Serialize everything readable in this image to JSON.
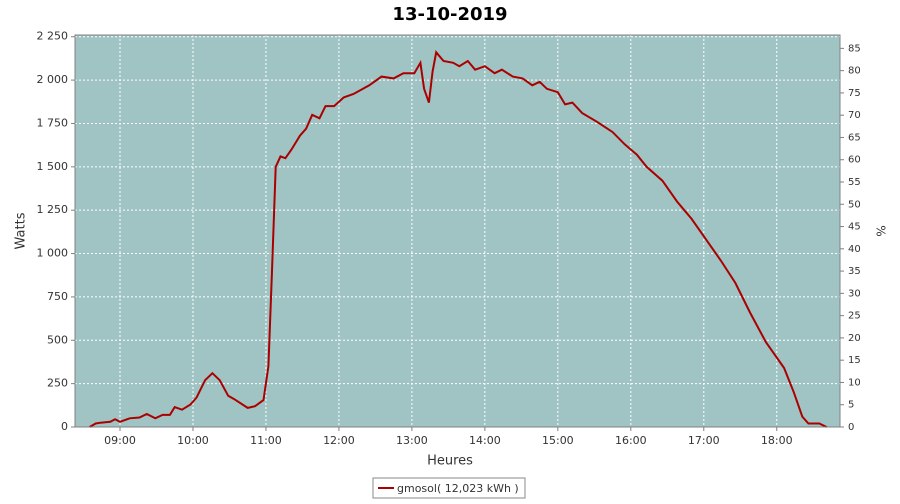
{
  "chart_data": {
    "type": "line",
    "title": "13-10-2019",
    "xlabel": "Heures",
    "ylabel": "Watts",
    "y2label": "%",
    "x": [
      "08:35",
      "08:40",
      "08:44",
      "08:52",
      "08:56",
      "09:00",
      "09:08",
      "09:16",
      "09:22",
      "09:29",
      "09:35",
      "09:41",
      "09:45",
      "09:51",
      "09:58",
      "10:03",
      "10:10",
      "10:16",
      "10:22",
      "10:29",
      "10:34",
      "10:45",
      "10:51",
      "10:58",
      "11:02",
      "11:05",
      "11:08",
      "11:12",
      "11:16",
      "11:21",
      "11:28",
      "11:33",
      "11:38",
      "11:44",
      "11:49",
      "11:56",
      "12:04",
      "12:12",
      "12:25",
      "12:35",
      "12:45",
      "12:53",
      "13:02",
      "13:07",
      "13:10",
      "13:14",
      "13:17",
      "13:20",
      "13:26",
      "13:34",
      "13:39",
      "13:46",
      "13:52",
      "14:00",
      "14:08",
      "14:14",
      "14:23",
      "14:31",
      "14:39",
      "14:45",
      "14:51",
      "15:00",
      "15:06",
      "15:12",
      "15:20",
      "15:32",
      "15:45",
      "15:55",
      "16:05",
      "16:13",
      "16:26",
      "16:38",
      "16:50",
      "17:02",
      "17:14",
      "17:26",
      "17:38",
      "17:51",
      "18:06",
      "18:14",
      "18:21",
      "18:26",
      "18:35",
      "18:41"
    ],
    "series": [
      {
        "name": "gmosol( 12,023 kWh )",
        "color": "#aa0000",
        "values": [
          0,
          20,
          25,
          30,
          45,
          30,
          50,
          55,
          75,
          50,
          70,
          70,
          115,
          100,
          130,
          170,
          270,
          310,
          270,
          180,
          160,
          110,
          120,
          155,
          350,
          900,
          1500,
          1560,
          1550,
          1600,
          1680,
          1720,
          1800,
          1780,
          1850,
          1850,
          1900,
          1920,
          1970,
          2020,
          2010,
          2040,
          2040,
          2100,
          1950,
          1870,
          2050,
          2160,
          2110,
          2100,
          2080,
          2110,
          2060,
          2080,
          2040,
          2060,
          2020,
          2010,
          1970,
          1990,
          1950,
          1930,
          1860,
          1870,
          1810,
          1760,
          1700,
          1630,
          1570,
          1500,
          1420,
          1300,
          1200,
          1080,
          960,
          830,
          660,
          490,
          340,
          200,
          60,
          20,
          20,
          0
        ]
      }
    ],
    "xlim": [
      "08:23",
      "18:52"
    ],
    "xticks": [
      "09:00",
      "10:00",
      "11:00",
      "12:00",
      "13:00",
      "14:00",
      "15:00",
      "16:00",
      "17:00",
      "18:00"
    ],
    "ylim": [
      0,
      2260
    ],
    "yticks": [
      0,
      250,
      500,
      750,
      {
        "value": 1000,
        "label": "1 000"
      },
      {
        "value": 1250,
        "label": "1 250"
      },
      {
        "value": 1500,
        "label": "1 500"
      },
      {
        "value": 1750,
        "label": "1 750"
      },
      {
        "value": 2000,
        "label": "2 000"
      },
      {
        "value": 2250,
        "label": "2 250"
      }
    ],
    "y2lim": [
      0,
      88
    ],
    "y2ticks": [
      0,
      5,
      10,
      15,
      20,
      25,
      30,
      35,
      40,
      45,
      50,
      55,
      60,
      65,
      70,
      75,
      80,
      85
    ],
    "grid": true,
    "legend": "bottom"
  }
}
